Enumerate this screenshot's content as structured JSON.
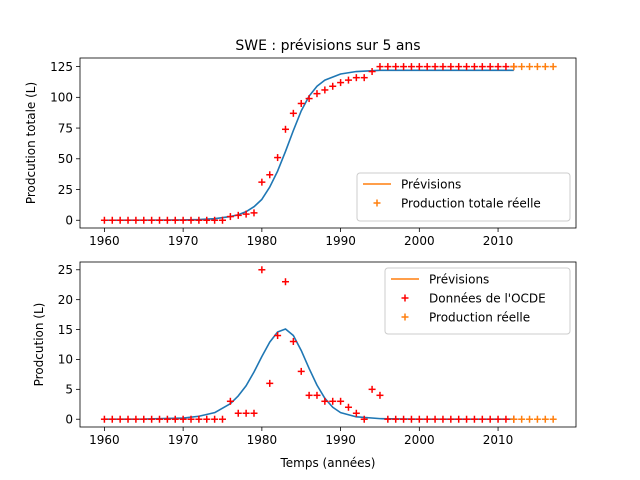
{
  "title": "SWE : prévisions sur 5 ans",
  "colors": {
    "fit": "#1f77b4",
    "forecast": "#ff7f0e",
    "observed": "#ff0000"
  },
  "chart_data": [
    {
      "type": "scatter",
      "ylabel": "Prodcution totale (L)",
      "xlabel": "",
      "xlim": [
        1956.9,
        2019.9
      ],
      "ylim": [
        -6.3,
        132
      ],
      "xticks": [
        1960,
        1970,
        1980,
        1990,
        2000,
        2010
      ],
      "yticks": [
        0,
        25,
        50,
        75,
        100,
        125
      ],
      "legend_position": "lower-right",
      "legend": [
        "Prévisions",
        "Production totale réelle"
      ],
      "series": [
        {
          "role": "fit-line",
          "x": [
            1960,
            1965,
            1970,
            1972,
            1974,
            1976,
            1977,
            1978,
            1979,
            1980,
            1981,
            1982,
            1983,
            1984,
            1985,
            1986,
            1987,
            1988,
            1990,
            1992,
            1995,
            2000,
            2012
          ],
          "values": [
            0,
            0.1,
            0.3,
            0.6,
            1.3,
            3,
            4.5,
            7,
            11,
            17,
            27,
            40,
            56,
            73,
            89,
            101,
            109,
            114,
            119,
            121,
            122,
            122,
            122
          ]
        },
        {
          "name": "Production totale réelle",
          "role": "observed",
          "x": [
            1960,
            1961,
            1962,
            1963,
            1964,
            1965,
            1966,
            1967,
            1968,
            1969,
            1970,
            1971,
            1972,
            1973,
            1974,
            1975,
            1976,
            1977,
            1978,
            1979,
            1980,
            1981,
            1982,
            1983,
            1984,
            1985,
            1986,
            1987,
            1988,
            1989,
            1990,
            1991,
            1992,
            1993,
            1994,
            1995,
            1996,
            1997,
            1998,
            1999,
            2000,
            2001,
            2002,
            2003,
            2004,
            2005,
            2006,
            2007,
            2008,
            2009,
            2010,
            2011,
            2012
          ],
          "values": [
            0,
            0,
            0,
            0,
            0,
            0,
            0,
            0,
            0,
            0,
            0,
            0,
            0,
            0,
            0,
            0,
            3,
            4,
            5,
            6,
            31,
            37,
            51,
            74,
            87,
            95,
            99,
            103,
            106,
            109,
            112,
            114,
            116,
            116,
            121,
            125,
            125,
            125,
            125,
            125,
            125,
            125,
            125,
            125,
            125,
            125,
            125,
            125,
            125,
            125,
            125,
            125,
            125
          ]
        },
        {
          "name": "Prévisions",
          "role": "forecast",
          "x": [
            2012,
            2013,
            2014,
            2015,
            2016,
            2017
          ],
          "values": [
            125,
            125,
            125,
            125,
            125,
            125
          ]
        }
      ]
    },
    {
      "type": "scatter",
      "ylabel": "Prodcution (L)",
      "xlabel": "Temps (années)",
      "xlim": [
        1956.9,
        2019.9
      ],
      "ylim": [
        -1.3,
        26.3
      ],
      "xticks": [
        1960,
        1970,
        1980,
        1990,
        2000,
        2010
      ],
      "yticks": [
        0,
        5,
        10,
        15,
        20,
        25
      ],
      "legend_position": "upper-right",
      "legend": [
        "Prévisions",
        "Données de l'OCDE",
        "Production réelle"
      ],
      "series": [
        {
          "role": "fit-line",
          "x": [
            1960,
            1965,
            1970,
            1972,
            1974,
            1976,
            1977,
            1978,
            1979,
            1980,
            1981,
            1982,
            1983,
            1984,
            1985,
            1986,
            1987,
            1988,
            1989,
            1990,
            1992,
            1995,
            2000,
            2012
          ],
          "values": [
            0,
            0.02,
            0.2,
            0.5,
            1.1,
            2.6,
            3.9,
            5.6,
            7.9,
            10.5,
            12.9,
            14.6,
            15.1,
            14,
            11.5,
            8.5,
            5.7,
            3.5,
            2,
            1.1,
            0.4,
            0.1,
            0,
            0
          ]
        },
        {
          "name": "Données de l'OCDE",
          "role": "observed",
          "x": [
            1960,
            1961,
            1962,
            1963,
            1964,
            1965,
            1966,
            1967,
            1968,
            1969,
            1970,
            1971,
            1972,
            1973,
            1974,
            1975,
            1976,
            1977,
            1978,
            1979,
            1980,
            1981,
            1982,
            1983,
            1984,
            1985,
            1986,
            1987,
            1988,
            1989,
            1990,
            1991,
            1992,
            1993,
            1994,
            1995,
            1996,
            1997,
            1998,
            1999,
            2000,
            2001,
            2002,
            2003,
            2004,
            2005,
            2006,
            2007,
            2008,
            2009,
            2010,
            2011,
            2012
          ],
          "values": [
            0,
            0,
            0,
            0,
            0,
            0,
            0,
            0,
            0,
            0,
            0,
            0,
            0,
            0,
            0,
            0,
            3,
            1,
            1,
            1,
            25,
            6,
            14,
            23,
            13,
            8,
            4,
            4,
            3,
            3,
            3,
            2,
            1,
            0,
            5,
            4,
            0,
            0,
            0,
            0,
            0,
            0,
            0,
            0,
            0,
            0,
            0,
            0,
            0,
            0,
            0,
            0,
            0
          ]
        },
        {
          "name": "Production réelle",
          "role": "forecast",
          "x": [
            2012,
            2013,
            2014,
            2015,
            2016,
            2017
          ],
          "values": [
            0,
            0,
            0,
            0,
            0,
            0
          ]
        }
      ]
    }
  ]
}
